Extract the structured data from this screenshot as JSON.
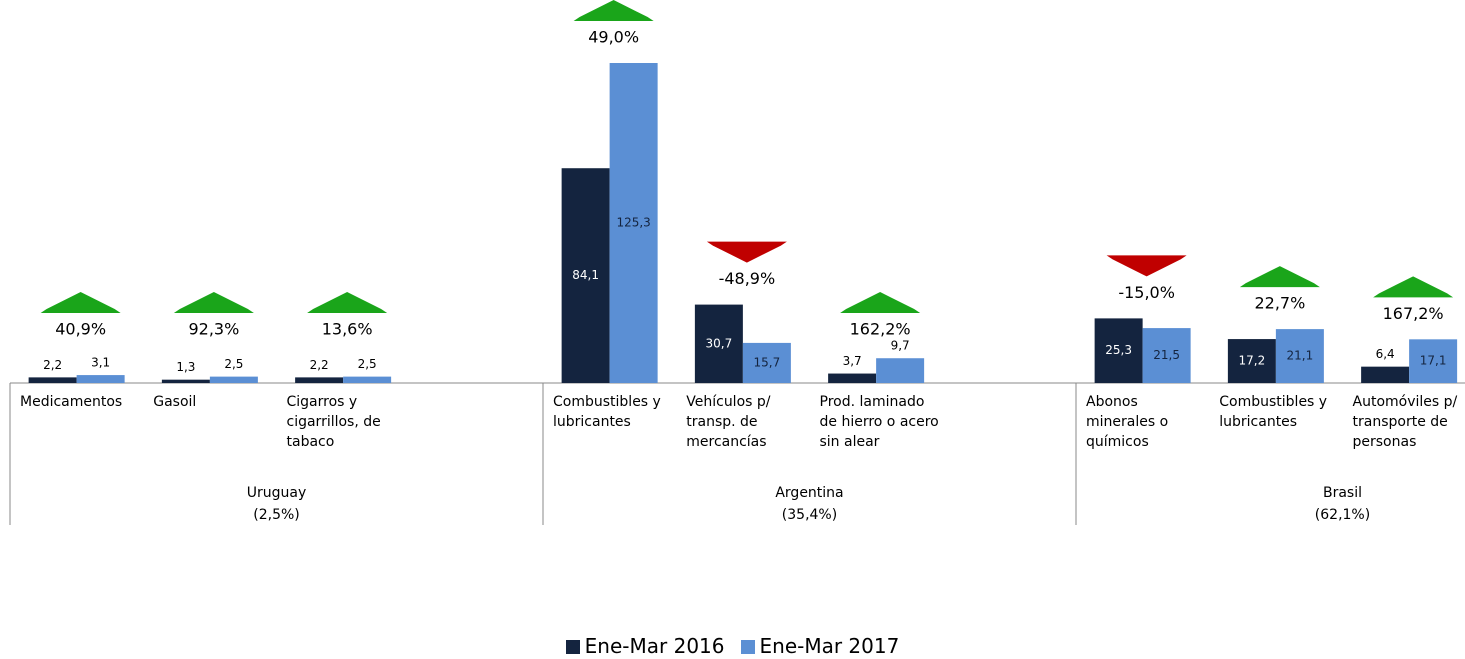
{
  "chart_data": {
    "type": "bar",
    "groups": [
      {
        "name": "Uruguay",
        "share": {
          "value": 2.5,
          "label": "(2,5%)"
        },
        "categories": [
          "Medicamentos",
          "Gasoil",
          "Cigarros y cigarrillos, de tabaco"
        ]
      },
      {
        "name": "Argentina",
        "share": {
          "value": 35.4,
          "label": "(35,4%)"
        },
        "categories": [
          "Combustibles y lubricantes",
          "Vehículos p/ transp. de mercancías",
          "Prod. laminado de hierro o acero sin alear"
        ]
      },
      {
        "name": "Brasil",
        "share": {
          "value": 62.1,
          "label": "(62,1%)"
        },
        "categories": [
          "Abonos minerales o químicos",
          "Combustibles y lubricantes",
          "Automóviles p/ transporte de personas"
        ]
      }
    ],
    "series": [
      {
        "name": "Ene-Mar 2016",
        "color": "#14243f",
        "values": [
          2.2,
          1.3,
          2.2,
          84.1,
          30.7,
          3.7,
          25.3,
          17.2,
          6.4
        ],
        "value_labels": [
          "2,2",
          "1,3",
          "2,2",
          "84,1",
          "30,7",
          "3,7",
          "25,3",
          "17,2",
          "6,4"
        ]
      },
      {
        "name": "Ene-Mar 2017",
        "color": "#5b8fd4",
        "values": [
          3.1,
          2.5,
          2.5,
          125.3,
          15.7,
          9.7,
          21.5,
          21.1,
          17.1
        ],
        "value_labels": [
          "3,1",
          "2,5",
          "2,5",
          "125,3",
          "15,7",
          "9,7",
          "21,5",
          "21,1",
          "17,1"
        ]
      }
    ],
    "changes": {
      "values": [
        40.9,
        92.3,
        13.6,
        49.0,
        -48.9,
        162.2,
        -15.0,
        22.7,
        167.2
      ],
      "value_labels": [
        "40,9%",
        "92,3%",
        "13,6%",
        "49,0%",
        "-48,9%",
        "162,2%",
        "-15,0%",
        "22,7%",
        "167,2%"
      ],
      "up_color": "#1aa51a",
      "down_color": "#c00000"
    }
  }
}
